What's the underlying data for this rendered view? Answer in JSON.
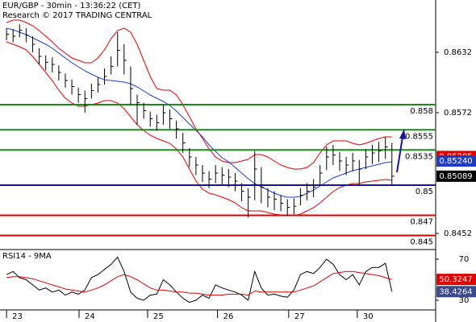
{
  "chart_data": [
    {
      "type": "ohlc",
      "title": "EUR/GBP - 30min - 13:36:22 (CET)",
      "subtitle": "Research © 2017 TRADING CENTRAL",
      "color": "#000000",
      "xlim": [
        -1,
        65.7
      ],
      "ylim": [
        0.8436,
        0.8684
      ],
      "yticks": [
        0.8632,
        0.8572,
        0.8452
      ],
      "high": [
        0.8656,
        0.8655,
        0.866,
        0.8656,
        0.8648,
        0.8636,
        0.8629,
        0.8627,
        0.8619,
        0.8611,
        0.8605,
        0.8597,
        0.8594,
        0.8601,
        0.8607,
        0.8616,
        0.8628,
        0.8652,
        0.864,
        0.8618,
        0.859,
        0.8582,
        0.8573,
        0.857,
        0.858,
        0.8575,
        0.8564,
        0.8552,
        0.8537,
        0.8528,
        0.852,
        0.8514,
        0.852,
        0.8518,
        0.8516,
        0.8512,
        0.8502,
        0.8497,
        0.8534,
        0.8518,
        0.8497,
        0.8494,
        0.849,
        0.8486,
        0.8487,
        0.8497,
        0.8502,
        0.8506,
        0.852,
        0.8538,
        0.854,
        0.8533,
        0.8528,
        0.8532,
        0.8525,
        0.8536,
        0.854,
        0.8543,
        0.8548,
        0.8542
      ],
      "low": [
        0.8644,
        0.8642,
        0.8647,
        0.8642,
        0.8632,
        0.862,
        0.8614,
        0.8612,
        0.8604,
        0.8597,
        0.859,
        0.8582,
        0.8572,
        0.8586,
        0.8592,
        0.86,
        0.861,
        0.8618,
        0.861,
        0.858,
        0.856,
        0.8566,
        0.8558,
        0.8554,
        0.856,
        0.8556,
        0.8546,
        0.8532,
        0.8518,
        0.851,
        0.8503,
        0.8497,
        0.8502,
        0.85,
        0.8498,
        0.8494,
        0.8484,
        0.8468,
        0.8485,
        0.8482,
        0.8478,
        0.8475,
        0.8474,
        0.847,
        0.8471,
        0.848,
        0.8485,
        0.8488,
        0.85,
        0.8515,
        0.852,
        0.8514,
        0.851,
        0.8514,
        0.85,
        0.8516,
        0.8521,
        0.8523,
        0.8526,
        0.85
      ],
      "close": [
        0.865,
        0.8648,
        0.8654,
        0.8649,
        0.864,
        0.8628,
        0.8622,
        0.862,
        0.8612,
        0.8604,
        0.8598,
        0.859,
        0.8586,
        0.8594,
        0.86,
        0.8608,
        0.8618,
        0.8634,
        0.8624,
        0.8596,
        0.8582,
        0.8574,
        0.8566,
        0.8562,
        0.8572,
        0.8566,
        0.8556,
        0.8542,
        0.8528,
        0.852,
        0.8512,
        0.8506,
        0.8512,
        0.851,
        0.8508,
        0.8504,
        0.8494,
        0.8488,
        0.8516,
        0.8498,
        0.8488,
        0.8486,
        0.8482,
        0.8478,
        0.8479,
        0.849,
        0.8494,
        0.8498,
        0.8512,
        0.8528,
        0.853,
        0.8524,
        0.852,
        0.8524,
        0.8516,
        0.8528,
        0.8532,
        0.8534,
        0.8538,
        0.85089
      ],
      "overlays": [
        {
          "color": "#e00000",
          "values": [
            0.86616,
            0.8664,
            0.8664,
            0.86616,
            0.86584,
            0.86536,
            0.8648,
            0.86424,
            0.8636,
            0.86312,
            0.86264,
            0.8624,
            0.86216,
            0.86216,
            0.86264,
            0.86344,
            0.86456,
            0.86536,
            0.8656,
            0.8652,
            0.864,
            0.8624,
            0.8608,
            0.8596,
            0.85944,
            0.85944,
            0.85896,
            0.858,
            0.8568,
            0.8556,
            0.85464,
            0.8536,
            0.8528,
            0.8524,
            0.85224,
            0.85224,
            0.8524,
            0.85256,
            0.85304,
            0.85304,
            0.8528,
            0.8524,
            0.852,
            0.85176,
            0.8516,
            0.8516,
            0.85176,
            0.85224,
            0.8532,
            0.854,
            0.8544,
            0.8544,
            0.8544,
            0.85416,
            0.854,
            0.85416,
            0.8544,
            0.85464,
            0.8548,
            0.8548
          ]
        },
        {
          "color": "#e00000",
          "values": [
            0.86424,
            0.864,
            0.86376,
            0.86344,
            0.8628,
            0.862,
            0.8612,
            0.8604,
            0.85944,
            0.85864,
            0.85816,
            0.85784,
            0.85784,
            0.858,
            0.85816,
            0.8584,
            0.8584,
            0.85816,
            0.8576,
            0.8568,
            0.856,
            0.85544,
            0.85496,
            0.85464,
            0.8544,
            0.85416,
            0.8536,
            0.8528,
            0.8516,
            0.8504,
            0.8496,
            0.8492,
            0.84904,
            0.8488,
            0.84856,
            0.84824,
            0.84776,
            0.84744,
            0.84744,
            0.84744,
            0.84728,
            0.84712,
            0.84704,
            0.84696,
            0.84696,
            0.84712,
            0.84744,
            0.84776,
            0.84824,
            0.8488,
            0.84936,
            0.84976,
            0.85,
            0.85016,
            0.85016,
            0.85032,
            0.8504,
            0.85048,
            0.85056,
            0.85048
          ]
        },
        {
          "color": "#1e3cc8",
          "values": [
            0.8656,
            0.86544,
            0.8652,
            0.86496,
            0.86464,
            0.86432,
            0.864,
            0.8636,
            0.86312,
            0.86264,
            0.86216,
            0.86176,
            0.86136,
            0.86104,
            0.86072,
            0.86048,
            0.8604,
            0.86032,
            0.86024,
            0.86008,
            0.85976,
            0.85936,
            0.85896,
            0.85864,
            0.85832,
            0.85792,
            0.85736,
            0.85672,
            0.85608,
            0.85544,
            0.8548,
            0.854,
            0.85336,
            0.85272,
            0.85232,
            0.85176,
            0.8512,
            0.85064,
            0.85016,
            0.84984,
            0.84952,
            0.8492,
            0.84896,
            0.8488,
            0.8488,
            0.84888,
            0.8492,
            0.84952,
            0.84992,
            0.85032,
            0.85072,
            0.85096,
            0.8512,
            0.85144,
            0.8516,
            0.85176,
            0.85192,
            0.85208,
            0.85224,
            0.85232
          ]
        }
      ],
      "levels": [
        {
          "value": 0.858,
          "color": "#1a8a1a"
        },
        {
          "value": 0.8555,
          "color": "#1a8a1a"
        },
        {
          "value": 0.8535,
          "color": "#1a8a1a"
        },
        {
          "value": 0.85,
          "color": "#1414a0"
        },
        {
          "value": 0.847,
          "color": "#e00000"
        },
        {
          "value": 0.845,
          "color": "#e00000"
        }
      ],
      "markers": [
        {
          "value": 0.85285,
          "color": "#e00000"
        },
        {
          "value": 0.8524,
          "label": "0.85240",
          "color": "#1e3cc8"
        }
      ],
      "last_color": "#000000"
    },
    {
      "type": "line",
      "title": "RSI14 - 9MA",
      "xlim": [
        -1,
        65.7
      ],
      "xticks": [
        {
          "value": 0,
          "label": "23"
        },
        {
          "value": 11.1,
          "label": "24"
        },
        {
          "value": 21.6,
          "label": "25"
        },
        {
          "value": 32.3,
          "label": "26"
        },
        {
          "value": 43.2,
          "label": "27"
        },
        {
          "value": 53.7,
          "label": "30"
        }
      ],
      "ylim": [
        20.6,
        79.4
      ],
      "yticks": [
        70,
        30
      ],
      "series": [
        {
          "color": "#000000",
          "box_color": "#3a4a8a",
          "values": [
            55,
            58,
            52,
            50,
            45,
            40,
            42,
            38,
            40,
            35,
            38,
            36,
            40,
            52,
            55,
            60,
            65,
            72,
            58,
            38,
            32,
            30,
            35,
            36,
            50,
            45,
            38,
            32,
            28,
            30,
            35,
            32,
            45,
            42,
            40,
            38,
            35,
            30,
            58,
            42,
            35,
            36,
            34,
            33,
            40,
            55,
            58,
            56,
            62,
            70,
            65,
            55,
            50,
            55,
            45,
            58,
            62,
            62,
            66,
            38.4264
          ]
        },
        {
          "color": "#e00000",
          "box_color": "#e00000",
          "values": [
            52,
            53,
            53,
            52,
            51,
            49,
            47,
            45,
            43,
            41,
            40,
            39,
            38,
            40,
            42,
            45,
            49,
            53,
            55,
            53,
            50,
            46,
            42,
            40,
            40,
            39,
            38,
            38,
            37,
            37,
            36,
            35,
            35,
            35,
            36,
            36,
            36,
            35,
            39,
            38,
            38,
            38,
            38,
            38,
            38,
            40,
            42,
            44,
            48,
            52,
            56,
            57,
            58,
            58,
            57,
            56,
            55,
            54,
            52,
            50.3247
          ]
        }
      ]
    }
  ]
}
